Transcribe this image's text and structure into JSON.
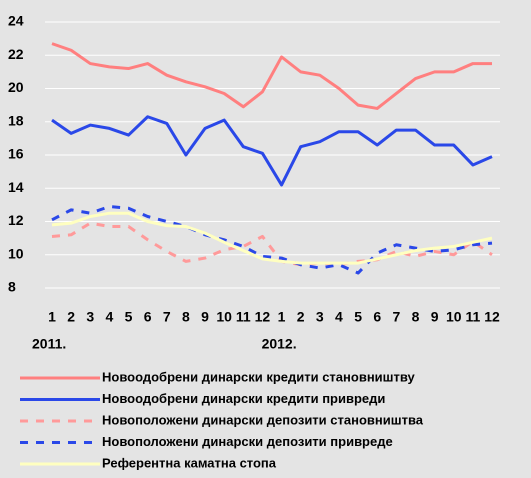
{
  "chart_data": {
    "type": "line",
    "categories": [
      "1",
      "2",
      "3",
      "4",
      "5",
      "6",
      "7",
      "8",
      "9",
      "10",
      "11",
      "12",
      "1",
      "2",
      "3",
      "4",
      "5",
      "6",
      "7",
      "8",
      "9",
      "10",
      "11",
      "12"
    ],
    "year_labels": [
      "2011.",
      "2012."
    ],
    "ylim": [
      8,
      24
    ],
    "yticks": [
      8,
      10,
      12,
      14,
      16,
      18,
      20,
      22,
      24
    ],
    "grid": true,
    "series": [
      {
        "name": "Новоодобрени динарски кредити становништву",
        "color": "#ff7f7f",
        "dashed": false,
        "values": [
          22.7,
          22.3,
          21.5,
          21.3,
          21.2,
          21.5,
          20.8,
          20.4,
          20.1,
          19.7,
          18.9,
          19.8,
          21.9,
          21.0,
          20.8,
          20.0,
          19.0,
          18.8,
          19.7,
          20.6,
          21.0,
          21.0,
          21.5,
          21.5
        ]
      },
      {
        "name": "Новоодобрени динарски кредити привреди",
        "color": "#2a48e8",
        "dashed": false,
        "values": [
          18.1,
          17.3,
          17.8,
          17.6,
          17.2,
          18.3,
          17.9,
          16.0,
          17.6,
          18.1,
          16.5,
          16.1,
          14.2,
          16.5,
          16.8,
          17.4,
          17.4,
          16.6,
          17.5,
          17.5,
          16.6,
          16.6,
          15.4,
          15.9
        ]
      },
      {
        "name": "Новоположени динарски депозити становништва",
        "color": "#ff9a9a",
        "dashed": true,
        "values": [
          11.1,
          11.2,
          11.9,
          11.7,
          11.7,
          10.9,
          10.2,
          9.6,
          9.8,
          10.3,
          10.5,
          11.1,
          9.6,
          9.4,
          9.5,
          9.4,
          9.6,
          9.7,
          10.2,
          9.9,
          10.2,
          10.0,
          10.8,
          10.0
        ]
      },
      {
        "name": "Новоположени динарски депозити привреде",
        "color": "#2a48e8",
        "dashed": true,
        "values": [
          12.1,
          12.7,
          12.5,
          12.9,
          12.8,
          12.3,
          12.0,
          11.7,
          11.2,
          10.9,
          10.5,
          9.9,
          9.8,
          9.4,
          9.2,
          9.4,
          8.9,
          10.1,
          10.6,
          10.4,
          10.2,
          10.3,
          10.6,
          10.7
        ]
      },
      {
        "name": "Референтна каматна стопа",
        "color": "#ffffc0",
        "dashed": false,
        "values": [
          11.8,
          11.9,
          12.3,
          12.5,
          12.5,
          12.0,
          11.75,
          11.7,
          11.3,
          10.75,
          10.25,
          9.75,
          9.6,
          9.5,
          9.5,
          9.5,
          9.5,
          9.75,
          10.0,
          10.25,
          10.4,
          10.5,
          10.75,
          11.0
        ]
      }
    ]
  }
}
